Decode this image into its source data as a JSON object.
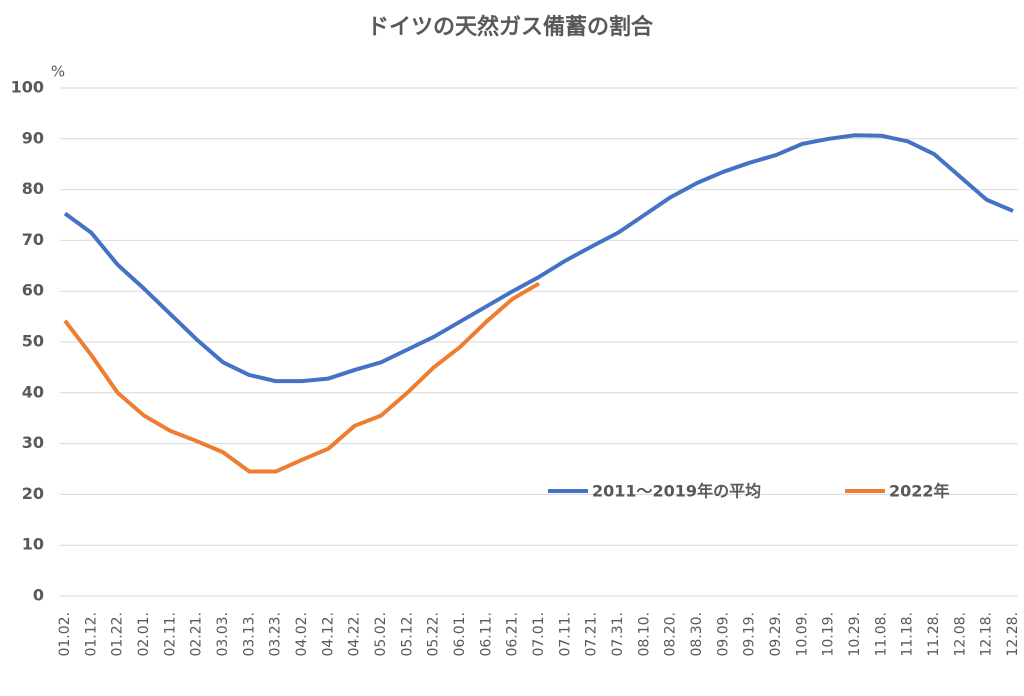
{
  "chart_data": {
    "type": "line",
    "title": "ドイツの天然ガス備蓄の割合",
    "ylabel": "%",
    "categories": [
      "01.02.",
      "01.12.",
      "01.22.",
      "02.01.",
      "02.11.",
      "02.21.",
      "03.03.",
      "03.13.",
      "03.23.",
      "04.02.",
      "04.12.",
      "04.22.",
      "05.02.",
      "05.12.",
      "05.22.",
      "06.01.",
      "06.11.",
      "06.21.",
      "07.01.",
      "07.11.",
      "07.21.",
      "07.31.",
      "08.10.",
      "08.20.",
      "08.30.",
      "09.09.",
      "09.19.",
      "09.29.",
      "10.09.",
      "10.19.",
      "10.29.",
      "11.08.",
      "11.18.",
      "11.28.",
      "12.08.",
      "12.18.",
      "12.28."
    ],
    "series": [
      {
        "name": "2011～2019年の平均",
        "color": "#4472c4",
        "values": [
          75.3,
          71.5,
          65.2,
          60.5,
          55.5,
          50.5,
          46,
          43.5,
          42.3,
          42.3,
          42.8,
          44.5,
          46,
          48.5,
          51,
          54,
          57,
          60,
          62.8,
          66,
          68.8,
          71.5,
          75,
          78.5,
          81.3,
          83.5,
          85.3,
          86.8,
          89,
          90,
          90.7,
          90.6,
          89.5,
          87,
          82.5,
          78,
          75.8
        ]
      },
      {
        "name": "2022年",
        "color": "#ed7d31",
        "values": [
          54.2,
          47.4,
          40,
          35.5,
          32.5,
          30.5,
          28.3,
          24.5,
          24.5,
          26.8,
          29,
          33.5,
          35.5,
          40,
          45,
          49,
          54,
          58.5,
          61.5,
          null,
          null,
          null,
          null,
          null,
          null,
          null,
          null,
          null,
          null,
          null,
          null,
          null,
          null,
          null,
          null,
          null,
          null
        ]
      }
    ],
    "ylim": [
      0,
      100
    ],
    "yticks": [
      0,
      10,
      20,
      30,
      40,
      50,
      60,
      70,
      80,
      90,
      100
    ],
    "grid": true
  }
}
